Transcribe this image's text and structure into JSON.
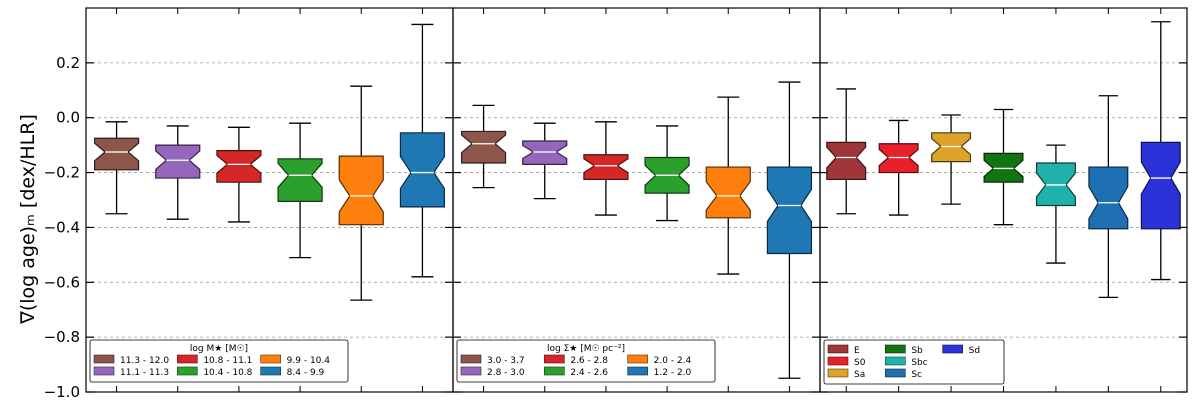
{
  "chart_data": {
    "type": "box",
    "ylabel": "∇(log age)ₘ  [dex/HLR]",
    "ylim": [
      -1.0,
      0.4
    ],
    "yticks": [
      0.2,
      0.0,
      -0.2,
      -0.4,
      -0.6,
      -0.8,
      -1.0
    ],
    "ytick_labels": [
      "0.2",
      "0.0",
      "−0.2",
      "−0.4",
      "−0.6",
      "−0.8",
      "−1.0"
    ],
    "grid": "horizontal dashed",
    "panels": [
      {
        "legend_title": "log M★ [M☉]",
        "legend_ncol": 3,
        "boxes": [
          {
            "label": "11.3 - 12.0",
            "color": "#8c564b",
            "whislo": -0.35,
            "q1": -0.19,
            "med": -0.125,
            "q3": -0.075,
            "whishi": -0.015
          },
          {
            "label": "11.1 - 11.3",
            "color": "#9467bd",
            "whislo": -0.37,
            "q1": -0.22,
            "med": -0.155,
            "q3": -0.1,
            "whishi": -0.03
          },
          {
            "label": "10.8 - 11.1",
            "color": "#d62728",
            "whislo": -0.38,
            "q1": -0.235,
            "med": -0.17,
            "q3": -0.12,
            "whishi": -0.035
          },
          {
            "label": "10.4 - 10.8",
            "color": "#2ca02c",
            "whislo": -0.51,
            "q1": -0.305,
            "med": -0.21,
            "q3": -0.15,
            "whishi": -0.02
          },
          {
            "label": "9.9 - 10.4",
            "color": "#ff7f0e",
            "whislo": -0.665,
            "q1": -0.39,
            "med": -0.285,
            "q3": -0.14,
            "whishi": 0.115
          },
          {
            "label": "8.4 - 9.9",
            "color": "#1f77b4",
            "whislo": -0.58,
            "q1": -0.325,
            "med": -0.2,
            "q3": -0.055,
            "whishi": 0.34
          }
        ]
      },
      {
        "legend_title": "log Σ★ [M☉ pc⁻²]",
        "legend_ncol": 3,
        "boxes": [
          {
            "label": "3.0 - 3.7",
            "color": "#8c564b",
            "whislo": -0.255,
            "q1": -0.165,
            "med": -0.095,
            "q3": -0.05,
            "whishi": 0.045
          },
          {
            "label": "2.8 - 3.0",
            "color": "#9467bd",
            "whislo": -0.295,
            "q1": -0.17,
            "med": -0.125,
            "q3": -0.085,
            "whishi": -0.02
          },
          {
            "label": "2.6 - 2.8",
            "color": "#d62728",
            "whislo": -0.355,
            "q1": -0.225,
            "med": -0.175,
            "q3": -0.135,
            "whishi": -0.015
          },
          {
            "label": "2.4 - 2.6",
            "color": "#2ca02c",
            "whislo": -0.375,
            "q1": -0.275,
            "med": -0.21,
            "q3": -0.145,
            "whishi": -0.03
          },
          {
            "label": "2.0 - 2.4",
            "color": "#ff7f0e",
            "whislo": -0.57,
            "q1": -0.365,
            "med": -0.285,
            "q3": -0.18,
            "whishi": 0.075
          },
          {
            "label": "1.2 - 2.0",
            "color": "#1f77b4",
            "whislo": -0.95,
            "q1": -0.495,
            "med": -0.32,
            "q3": -0.18,
            "whishi": 0.13
          }
        ]
      },
      {
        "legend_title": "",
        "legend_ncol": 3,
        "boxes": [
          {
            "label": "E",
            "color": "#a0363a",
            "whislo": -0.35,
            "q1": -0.225,
            "med": -0.145,
            "q3": -0.09,
            "whishi": 0.105
          },
          {
            "label": "S0",
            "color": "#e8202a",
            "whislo": -0.355,
            "q1": -0.2,
            "med": -0.145,
            "q3": -0.095,
            "whishi": -0.01
          },
          {
            "label": "Sa",
            "color": "#dfa32c",
            "whislo": -0.315,
            "q1": -0.16,
            "med": -0.105,
            "q3": -0.055,
            "whishi": 0.01
          },
          {
            "label": "Sb",
            "color": "#117311",
            "whislo": -0.39,
            "q1": -0.235,
            "med": -0.185,
            "q3": -0.13,
            "whishi": 0.03
          },
          {
            "label": "Sbc",
            "color": "#20b2aa",
            "whislo": -0.53,
            "q1": -0.32,
            "med": -0.245,
            "q3": -0.165,
            "whishi": -0.1
          },
          {
            "label": "Sc",
            "color": "#1f6fb4",
            "whislo": -0.655,
            "q1": -0.405,
            "med": -0.31,
            "q3": -0.18,
            "whishi": 0.08
          },
          {
            "label": "Sd",
            "color": "#2a32d8",
            "whislo": -0.59,
            "q1": -0.405,
            "med": -0.22,
            "q3": -0.09,
            "whishi": 0.35
          }
        ]
      }
    ]
  }
}
